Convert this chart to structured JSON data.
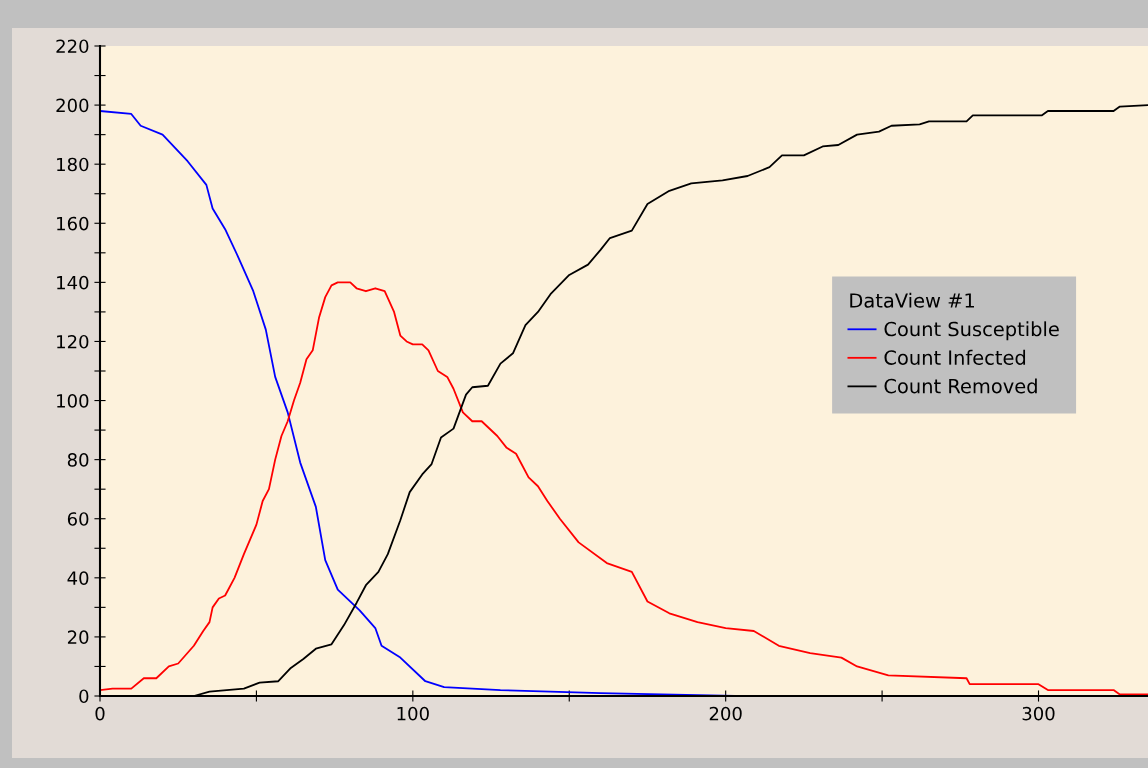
{
  "chart_data": {
    "type": "line",
    "legend_title": "DataView #1",
    "legend": "right",
    "grid": false,
    "marker": "none",
    "line_style": "solid",
    "xlim": [
      0,
      335
    ],
    "xticks": [
      0,
      {
        "value": 50,
        "label": null
      },
      100,
      {
        "value": 150,
        "label": null
      },
      200,
      {
        "value": 250,
        "label": null
      },
      300
    ],
    "ylim": [
      0,
      220
    ],
    "yticks": [
      0,
      {
        "value": 10,
        "label": null
      },
      20,
      {
        "value": 30,
        "label": null
      },
      40,
      {
        "value": 50,
        "label": null
      },
      60,
      {
        "value": 70,
        "label": null
      },
      80,
      {
        "value": 90,
        "label": null
      },
      100,
      {
        "value": 110,
        "label": null
      },
      120,
      {
        "value": 130,
        "label": null
      },
      140,
      {
        "value": 150,
        "label": null
      },
      160,
      {
        "value": 170,
        "label": null
      },
      180,
      {
        "value": 190,
        "label": null
      },
      200,
      {
        "value": 210,
        "label": null
      },
      220
    ],
    "series": [
      {
        "name": "Count Susceptible",
        "color": "#0000ff",
        "x": [
          0,
          10,
          13,
          20,
          28,
          34,
          36,
          40,
          44,
          49,
          53,
          56,
          60,
          64,
          69,
          72,
          76,
          83,
          88,
          90,
          96,
          104,
          110,
          128,
          160,
          203,
          335
        ],
        "values": [
          198,
          197,
          193,
          190,
          181,
          173,
          165,
          158,
          149,
          137,
          124,
          108,
          96,
          79,
          64,
          46,
          36,
          29,
          23,
          17,
          13,
          5,
          3,
          2,
          1,
          0,
          0
        ]
      },
      {
        "name": "Count Infected",
        "color": "#ff0000",
        "x": [
          0,
          4,
          10,
          14,
          18,
          22,
          25,
          30,
          33,
          35,
          36,
          38,
          40,
          43,
          46,
          48,
          50,
          52,
          54,
          56,
          58,
          60,
          62,
          64,
          66,
          68,
          70,
          72,
          74,
          76,
          80,
          82,
          85,
          88,
          91,
          94,
          96,
          98,
          100,
          103,
          105,
          108,
          111,
          113,
          116,
          119,
          122,
          127,
          130,
          133,
          137,
          140,
          143,
          147,
          153,
          162,
          170,
          175,
          182,
          191,
          200,
          209,
          217,
          227,
          237,
          242,
          252,
          277,
          278,
          300,
          303,
          324,
          326,
          335
        ],
        "values": [
          2,
          2.5,
          2.5,
          6,
          6,
          10,
          11,
          17,
          22,
          25,
          30,
          33,
          34,
          40,
          48,
          53,
          58,
          66,
          70,
          80,
          88,
          93,
          100,
          106,
          114,
          117,
          128,
          135,
          139,
          140,
          140,
          138,
          137,
          138,
          137,
          130,
          122,
          120,
          119,
          119,
          117,
          110,
          108,
          104,
          96,
          93,
          93,
          88,
          84,
          82,
          74,
          71,
          66,
          60,
          52,
          45,
          42,
          32,
          28,
          25,
          23,
          22,
          17,
          14.5,
          13,
          10,
          7,
          6,
          4,
          4,
          2,
          2,
          0.5,
          0.5
        ]
      },
      {
        "name": "Count Removed",
        "color": "#000000",
        "x": [
          0,
          30,
          35,
          46,
          51,
          57,
          61,
          65,
          69,
          74,
          78,
          82,
          85,
          89,
          92,
          96,
          99,
          103,
          106,
          109,
          113,
          117,
          119,
          124,
          128,
          132,
          136,
          140,
          144,
          150,
          156,
          160,
          163,
          170,
          175,
          182,
          189,
          199,
          207,
          214,
          218,
          225,
          231,
          236,
          242,
          249,
          253,
          262,
          265,
          277,
          279,
          301,
          303,
          324,
          326,
          335
        ],
        "values": [
          0,
          0,
          1.5,
          2.5,
          4.5,
          5,
          9.5,
          12.5,
          16,
          17.5,
          24,
          31.5,
          37.5,
          42,
          48,
          59.5,
          69,
          75,
          78.5,
          87.5,
          90.5,
          102,
          104.5,
          105,
          112.5,
          116,
          125.5,
          130,
          136,
          142.5,
          146,
          151,
          155,
          157.5,
          166.5,
          171,
          173.5,
          174.5,
          176,
          179,
          183,
          183,
          186,
          186.5,
          190,
          191,
          193,
          193.5,
          194.5,
          194.5,
          196.5,
          196.5,
          198,
          198,
          199.5,
          200
        ]
      }
    ]
  }
}
